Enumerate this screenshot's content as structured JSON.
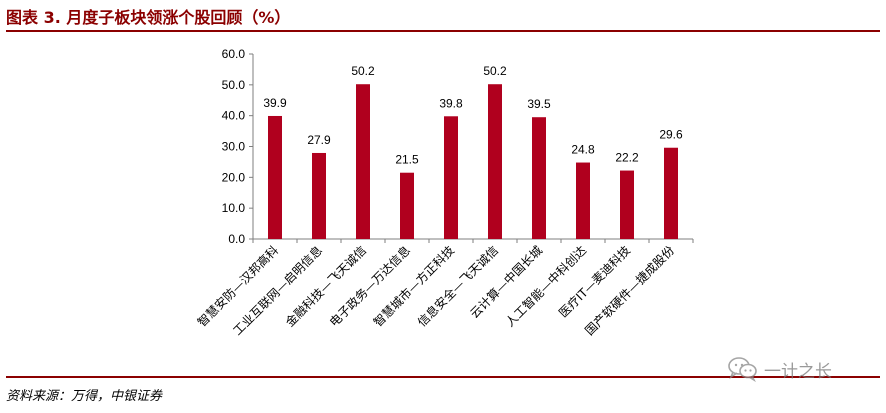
{
  "header": {
    "title": "图表 3. 月度子板块领涨个股回顾（%）"
  },
  "footer": {
    "source": "资料来源：万得，中银证券"
  },
  "watermark": {
    "text": "一计之长",
    "icon": "wechat-icon"
  },
  "colors": {
    "bar": "#b0001e",
    "title": "#8b0000",
    "rule": "#8b0000",
    "axis": "#7f7f7f"
  },
  "chart_data": {
    "type": "bar",
    "title": "",
    "xlabel": "",
    "ylabel": "",
    "ylim": [
      0,
      60
    ],
    "yticks": [
      "0.0",
      "10.0",
      "20.0",
      "30.0",
      "40.0",
      "50.0",
      "60.0"
    ],
    "categories": [
      "智慧安防—汉邦高科",
      "工业互联网—启明信息",
      "金融科技—飞天诚信",
      "电子政务—万达信息",
      "智慧城市—方正科技",
      "信息安全—飞天诚信",
      "云计算—中国长城",
      "人工智能—中科创达",
      "医疗IT—麦迪科技",
      "国产软硬件—捷成股份"
    ],
    "values": [
      39.9,
      27.9,
      50.2,
      21.5,
      39.8,
      50.2,
      39.5,
      24.8,
      22.2,
      29.6
    ],
    "value_labels": [
      "39.9",
      "27.9",
      "50.2",
      "21.5",
      "39.8",
      "50.2",
      "39.5",
      "24.8",
      "22.2",
      "29.6"
    ],
    "grid": false,
    "legend": "none"
  }
}
